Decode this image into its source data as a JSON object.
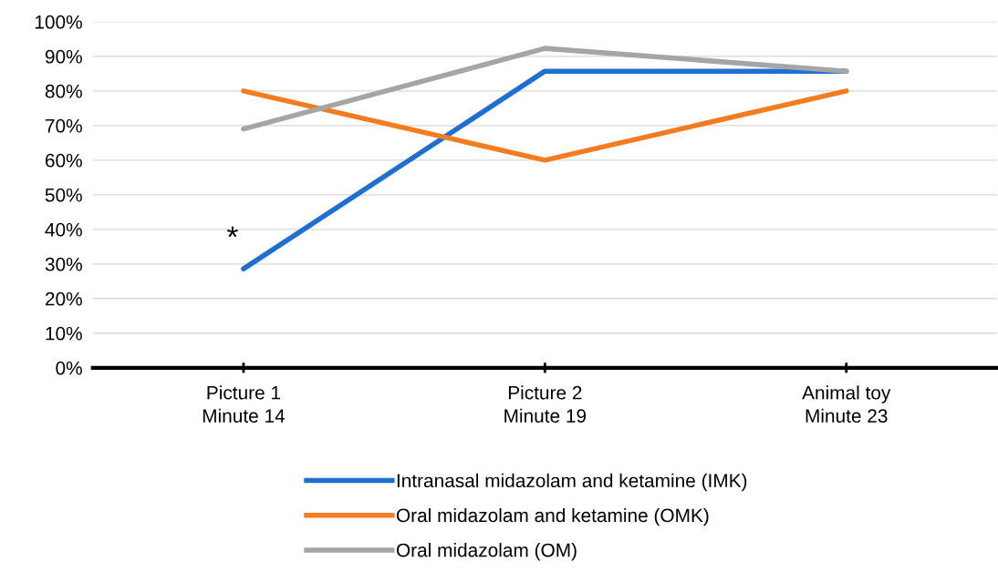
{
  "chart_data": {
    "type": "line",
    "categories": [
      "Picture 1\nMinute 14",
      "Picture 2\nMinute 19",
      "Animal toy\nMinute 23"
    ],
    "series": [
      {
        "name": "Intranasal midazolam and ketamine (IMK)",
        "color": "#1f6fd1",
        "values": [
          28.6,
          85.7,
          85.7
        ]
      },
      {
        "name": "Oral midazolam and ketamine (OMK)",
        "color": "#f47b20",
        "values": [
          80,
          60,
          80
        ]
      },
      {
        "name": "Oral midazolam (OM)",
        "color": "#a5a5a5",
        "values": [
          69,
          92.3,
          85.7
        ]
      }
    ],
    "ylim": [
      0,
      100
    ],
    "yticks": [
      {
        "value": 0,
        "label": "0%"
      },
      {
        "value": 10,
        "label": "10%"
      },
      {
        "value": 20,
        "label": "20%"
      },
      {
        "value": 30,
        "label": "30%"
      },
      {
        "value": 40,
        "label": "40%"
      },
      {
        "value": 50,
        "label": "50%"
      },
      {
        "value": 60,
        "label": "60%"
      },
      {
        "value": 70,
        "label": "70%"
      },
      {
        "value": 80,
        "label": "80%"
      },
      {
        "value": 90,
        "label": "90%"
      },
      {
        "value": 100,
        "label": "100%"
      }
    ],
    "annotations": [
      "*"
    ],
    "grid": "y",
    "legend": "bottom",
    "marker": "none",
    "line_style": "solid"
  }
}
